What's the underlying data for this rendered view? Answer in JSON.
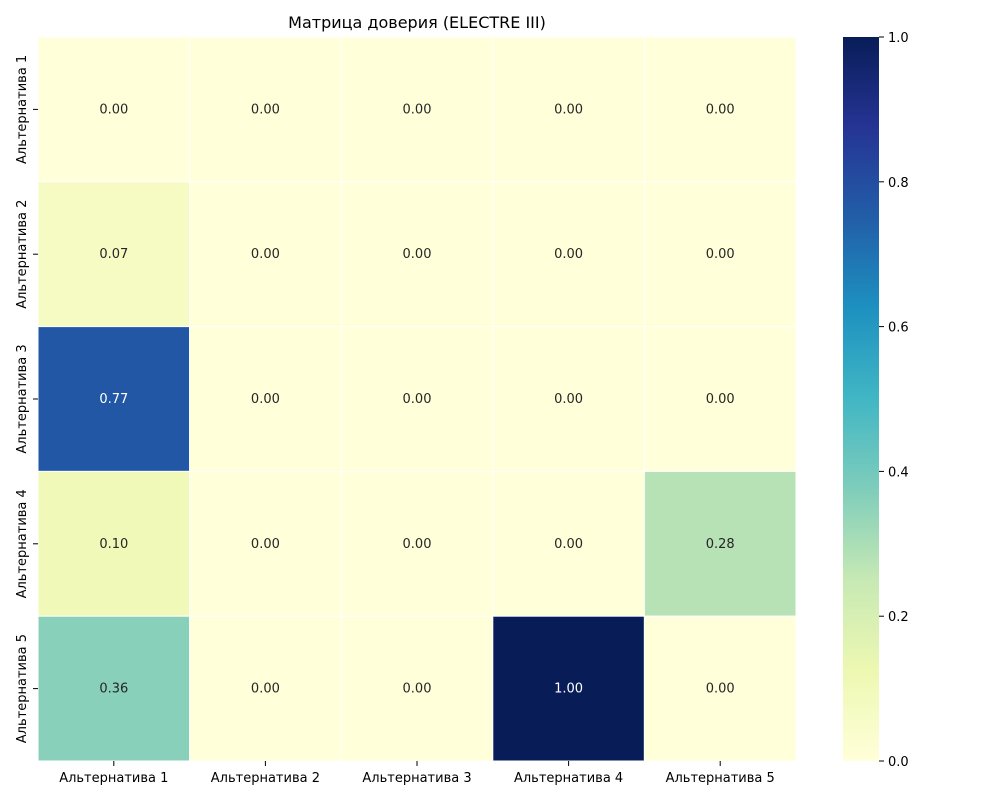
{
  "chart_data": {
    "type": "heatmap",
    "title": "Матрица доверия (ELECTRE III)",
    "xlabel": "",
    "ylabel": "",
    "x_categories": [
      "Альтернатива 1",
      "Альтернатива 2",
      "Альтернатива 3",
      "Альтернатива 4",
      "Альтернатива 5"
    ],
    "y_categories": [
      "Альтернатива 1",
      "Альтернатива 2",
      "Альтернатива 3",
      "Альтернатива 4",
      "Альтернатива 5"
    ],
    "values": [
      [
        0.0,
        0.0,
        0.0,
        0.0,
        0.0
      ],
      [
        0.07,
        0.0,
        0.0,
        0.0,
        0.0
      ],
      [
        0.77,
        0.0,
        0.0,
        0.0,
        0.0
      ],
      [
        0.1,
        0.0,
        0.0,
        0.0,
        0.28
      ],
      [
        0.36,
        0.0,
        0.0,
        1.0,
        0.0
      ]
    ],
    "value_format": "0.00",
    "colormap": "YlGnBu",
    "color_range": [
      0.0,
      1.0
    ],
    "colorbar_ticks": [
      "0.0",
      "0.2",
      "0.4",
      "0.6",
      "0.8",
      "1.0"
    ],
    "colors": {
      "cmap_stops": [
        "#ffffd9",
        "#edf8b1",
        "#c7e9b4",
        "#7fcdbb",
        "#41b6c4",
        "#1d91c0",
        "#225ea8",
        "#253494",
        "#081d58"
      ],
      "cell_border": "#ffffff",
      "text_dark": "#262626",
      "text_light": "#ffffff"
    },
    "grid": false,
    "legend": "colorbar-right"
  }
}
